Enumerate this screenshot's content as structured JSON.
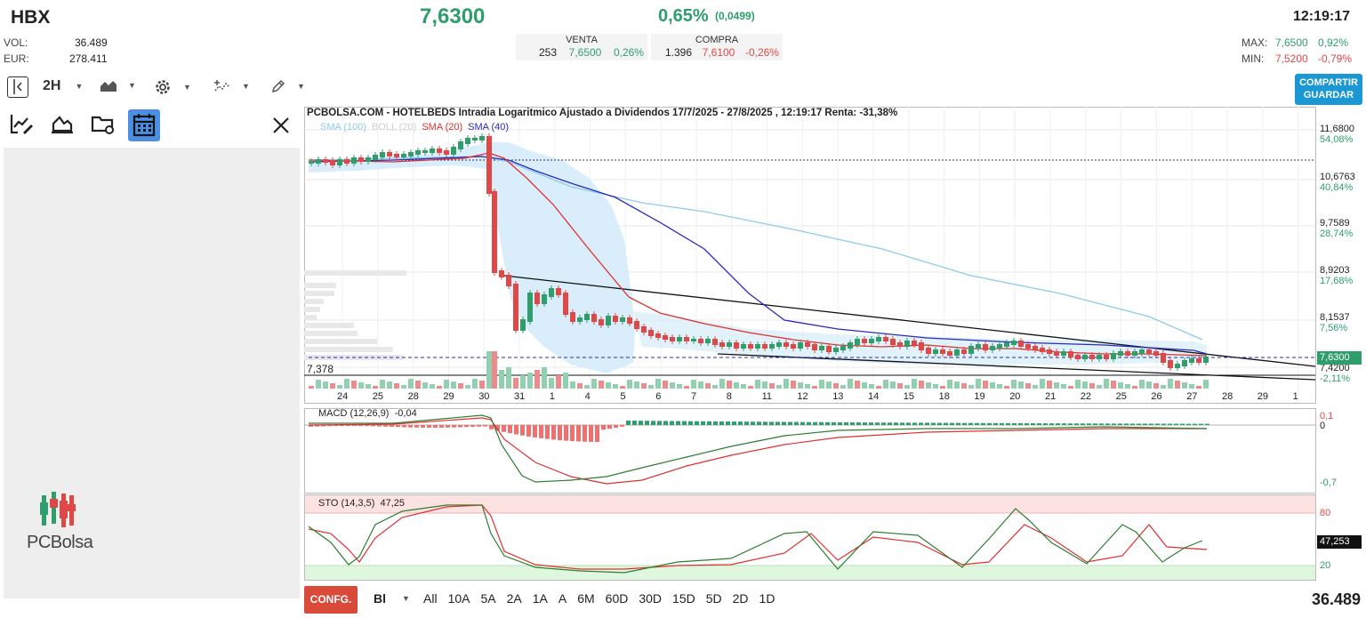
{
  "header": {
    "ticker": "HBX",
    "price": "7,6300",
    "change_pct": "0,65%",
    "change_abs": "(0,0499)",
    "time": "12:19:17",
    "vol_label": "VOL:",
    "vol_value": "36.489",
    "eur_label": "EUR:",
    "eur_value": "278.411",
    "max_label": "MAX:",
    "max_value": "7,6500",
    "max_pct": "0,92%",
    "min_label": "MIN:",
    "min_value": "7,5200",
    "min_pct": "-0,79%",
    "sell": {
      "label": "VENTA",
      "qty": "253",
      "price": "7,6500",
      "pct": "0,26%"
    },
    "buy": {
      "label": "COMPRA",
      "qty": "1.396",
      "price": "7,6100",
      "pct": "-0,26%"
    }
  },
  "toolbar": {
    "interval": "2H",
    "share_line1": "COMPARTIR",
    "share_line2": "GUARDAR"
  },
  "brand": {
    "text": "PCBolsa"
  },
  "chart": {
    "title": "PCBOLSA.COM - HOTELBEDS Intradia Logaritmico Ajustado a Dividendos 17/7/2025 - 27/8/2025 , 12:19:17 Renta: -31,38%",
    "legend": [
      {
        "label": "SMA (100)",
        "color": "#8ecbec"
      },
      {
        "label": "BOLL (20)",
        "color": "#cfcfcf"
      },
      {
        "label": "SMA (20)",
        "color": "#e03030"
      },
      {
        "label": "SMA (40)",
        "color": "#2a2ac0"
      }
    ],
    "support_label": "7,378",
    "price_axis": [
      {
        "value": "11,6800",
        "pct": "54,08%"
      },
      {
        "value": "10,6763",
        "pct": "40,84%"
      },
      {
        "value": "9,7589",
        "pct": "28,74%"
      },
      {
        "value": "8,9203",
        "pct": "17,68%"
      },
      {
        "value": "8,1537",
        "pct": "7,56%"
      },
      {
        "value": "7,4200",
        "pct": "-2,11%"
      }
    ],
    "last_price_tag": "7,6300",
    "dates": [
      "24",
      "25",
      "28",
      "29",
      "30",
      "31",
      "1",
      "4",
      "5",
      "6",
      "7",
      "8",
      "11",
      "12",
      "13",
      "14",
      "15",
      "18",
      "19",
      "20",
      "21",
      "22",
      "25",
      "26",
      "27",
      "28",
      "29",
      "1"
    ]
  },
  "macd": {
    "label": "MACD (12,26,9)",
    "value": "-0,04",
    "axis_top": "0,1",
    "axis_zero": "0",
    "axis_bottom": "-0,7"
  },
  "sto": {
    "label": "STO (14,3,5)",
    "value": "47,25",
    "axis_high": "80",
    "axis_low": "20",
    "tag": "47,253"
  },
  "footer": {
    "config": "CONFG.",
    "mode": "Bl",
    "periods": [
      "All",
      "10A",
      "5A",
      "2A",
      "1A",
      "A",
      "6M",
      "60D",
      "30D",
      "15D",
      "5D",
      "2D",
      "1D"
    ],
    "volume": "36.489"
  }
}
